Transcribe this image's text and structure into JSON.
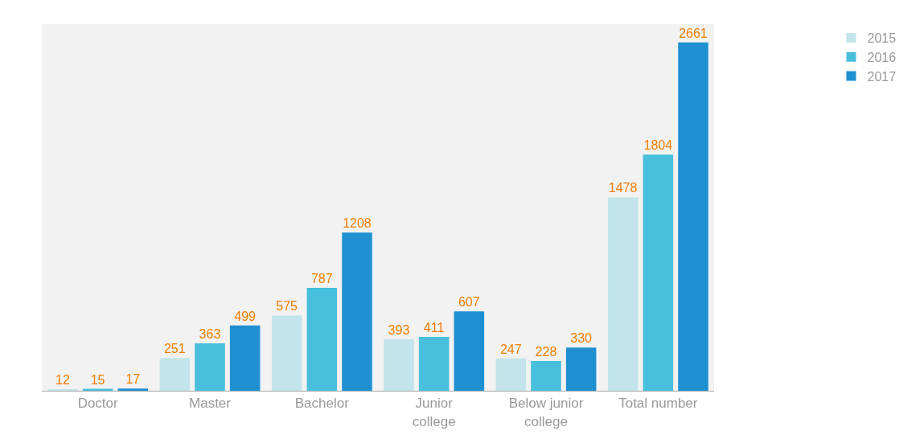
{
  "chart_data": {
    "type": "bar",
    "categories": [
      "Doctor",
      "Master",
      "Bachelor",
      "Junior college",
      "Below junior college",
      "Total number"
    ],
    "series": [
      {
        "name": "2015",
        "color": "#c2e4ea",
        "values": [
          12,
          251,
          575,
          393,
          247,
          1478
        ]
      },
      {
        "name": "2016",
        "color": "#48bfdc",
        "values": [
          15,
          363,
          787,
          411,
          228,
          1804
        ]
      },
      {
        "name": "2017",
        "color": "#1e90d2",
        "values": [
          17,
          499,
          1208,
          607,
          330,
          2661
        ]
      }
    ],
    "data_labels": true,
    "legend": "top right"
  }
}
